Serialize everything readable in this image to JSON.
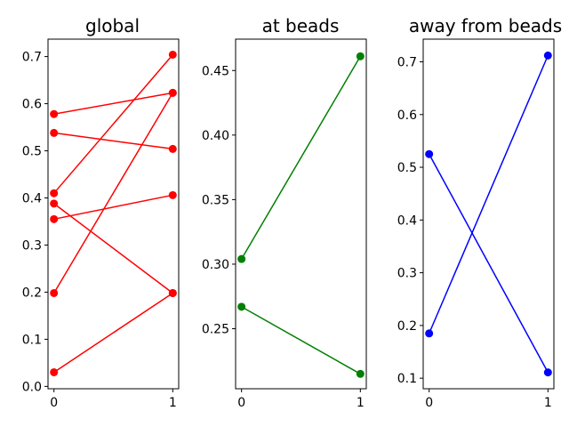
{
  "chart_data": [
    {
      "type": "line",
      "title": "global",
      "x": [
        0,
        1
      ],
      "x_ticks": [
        "0",
        "1"
      ],
      "ylim": [
        -0.005,
        0.737
      ],
      "y_ticks": [
        "0.0",
        "0.1",
        "0.2",
        "0.3",
        "0.4",
        "0.5",
        "0.6",
        "0.7"
      ],
      "color": "#ff0000",
      "lines": [
        {
          "values": [
            0.578,
            0.623
          ]
        },
        {
          "values": [
            0.538,
            0.504
          ]
        },
        {
          "values": [
            0.41,
            0.704
          ]
        },
        {
          "values": [
            0.388,
            0.198
          ]
        },
        {
          "values": [
            0.355,
            0.406
          ]
        },
        {
          "values": [
            0.198,
            0.623
          ]
        },
        {
          "values": [
            0.03,
            0.198
          ]
        }
      ]
    },
    {
      "type": "line",
      "title": "at beads",
      "x": [
        0,
        1
      ],
      "x_ticks": [
        "0",
        "1"
      ],
      "ylim": [
        0.2035,
        0.4743
      ],
      "y_ticks": [
        "0.25",
        "0.30",
        "0.35",
        "0.40",
        "0.45"
      ],
      "color": "#008000",
      "lines": [
        {
          "values": [
            0.304,
            0.461
          ]
        },
        {
          "values": [
            0.267,
            0.215
          ]
        }
      ]
    },
    {
      "type": "line",
      "title": "away from beads",
      "x": [
        0,
        1
      ],
      "x_ticks": [
        "0",
        "1"
      ],
      "ylim": [
        0.08,
        0.743
      ],
      "y_ticks": [
        "0.1",
        "0.2",
        "0.3",
        "0.4",
        "0.5",
        "0.6",
        "0.7"
      ],
      "color": "#0000ff",
      "lines": [
        {
          "values": [
            0.525,
            0.111
          ]
        },
        {
          "values": [
            0.185,
            0.712
          ]
        }
      ]
    }
  ]
}
